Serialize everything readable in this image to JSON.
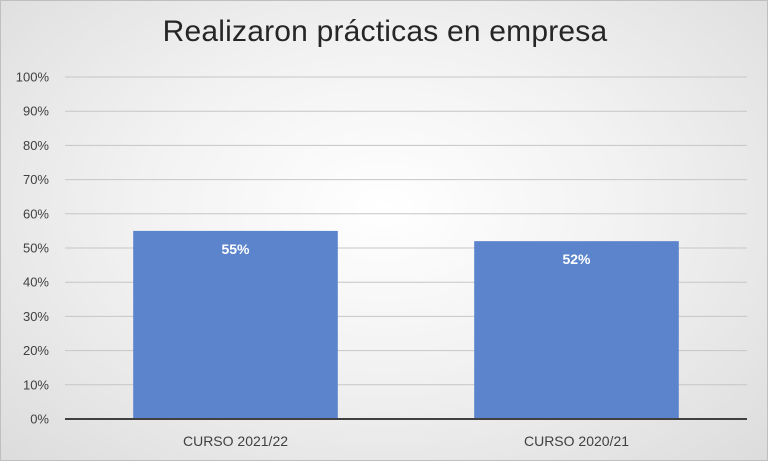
{
  "chart_data": {
    "type": "bar",
    "title": "Realizaron prácticas en empresa",
    "categories": [
      "CURSO 2021/22",
      "CURSO 2020/21"
    ],
    "values": [
      0.55,
      0.52
    ],
    "data_labels": [
      "55%",
      "52%"
    ],
    "xlabel": "",
    "ylabel": "",
    "ylim": [
      0,
      1
    ],
    "yticks": [
      "0%",
      "10%",
      "20%",
      "30%",
      "40%",
      "50%",
      "60%",
      "70%",
      "80%",
      "90%",
      "100%"
    ],
    "grid": true,
    "legend": "none",
    "bar_color": "#5b84cc"
  }
}
